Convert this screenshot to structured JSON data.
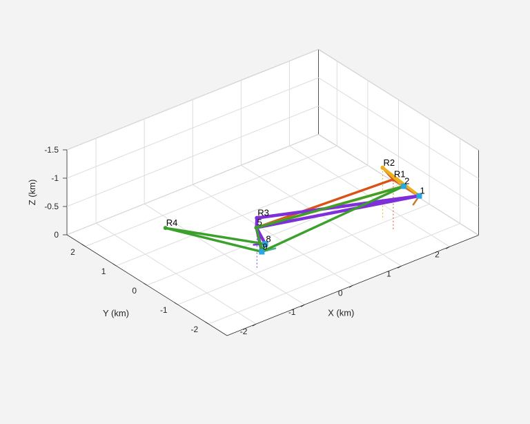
{
  "chart_data": {
    "type": "line3d",
    "title": "",
    "xlabel": "X (km)",
    "ylabel": "Y (km)",
    "zlabel": "Z (km)",
    "xlim": [
      -2.6,
      2.6
    ],
    "ylim": [
      -2.6,
      2.6
    ],
    "zlim": [
      -1.5,
      0
    ],
    "z_direction": "reverse",
    "grid": true,
    "xticks": [
      -2,
      -1,
      0,
      1,
      2
    ],
    "yticks": [
      -2,
      -1,
      0,
      1,
      2
    ],
    "zticks": [
      -1.5,
      -1,
      -0.5,
      0
    ],
    "xtick_labels": [
      "-2",
      "-1",
      "0",
      "1",
      "2"
    ],
    "ytick_labels": [
      "-2",
      "-1",
      "0",
      "1",
      "2"
    ],
    "ztick_labels": [
      "-1.5",
      "-1",
      "-0.5",
      "0"
    ],
    "nodes": [
      {
        "id": "1",
        "label": "1",
        "x": 1.5,
        "y": -2.4,
        "z": -1.0
      },
      {
        "id": "2",
        "label": "2",
        "x": 1.5,
        "y": -1.9,
        "z": -1.0
      },
      {
        "id": "R1",
        "label": "R1",
        "x": 2.3,
        "y": -0.3,
        "z": -0.3
      },
      {
        "id": "R2",
        "label": "R2",
        "x": 2.4,
        "y": 0.2,
        "z": -0.3
      },
      {
        "id": "R3",
        "label": "R3",
        "x": -0.2,
        "y": 0.2,
        "z": -0.3
      },
      {
        "id": "5",
        "label": "5",
        "x": -0.4,
        "y": -0.1,
        "z": -0.3
      },
      {
        "id": "R4",
        "label": "R4",
        "x": -1.9,
        "y": 0.5,
        "z": -0.6
      },
      {
        "id": "9",
        "label": "9",
        "x": -1.5,
        "y": -2.0,
        "z": -0.9
      },
      {
        "id": "8",
        "label": "8",
        "x": -1.3,
        "y": -1.8,
        "z": -0.9
      }
    ],
    "series": [
      {
        "color": "#d95319",
        "path": [
          "1",
          "R1",
          "R2",
          "R1",
          "5",
          "2",
          "1"
        ],
        "width": 3.5
      },
      {
        "color": "#edb120",
        "path": [
          "1",
          "R2",
          "2",
          "5",
          "1"
        ],
        "width": 4
      },
      {
        "color": "#7e2fd9",
        "path": [
          "9",
          "5",
          "R3",
          "1",
          "5",
          "8"
        ],
        "width": 4.5
      },
      {
        "color": "#3ca02c",
        "path": [
          "2",
          "9",
          "R4",
          "8",
          "9",
          "5",
          "2"
        ],
        "width": 3.5
      }
    ],
    "trails": [
      {
        "color": "#c8772c",
        "from": [
          1.25,
          -2.6,
          -1.0
        ],
        "to": [
          1.5,
          -2.4,
          -1.0
        ]
      },
      {
        "color": "#49b38c",
        "from": [
          -1.5,
          -2.0,
          -0.9
        ],
        "to": [
          -1.6,
          -2.6,
          -1.2
        ]
      },
      {
        "color": "#7e2fd9",
        "from": [
          -1.3,
          -1.8,
          -0.9
        ],
        "to": [
          -1.35,
          -1.5,
          -0.8
        ]
      }
    ],
    "drop_lines": [
      "R1",
      "R2",
      "R3"
    ],
    "station_markers": [
      "1",
      "2",
      "9",
      "8"
    ],
    "station_color": "#2aa7e0"
  }
}
